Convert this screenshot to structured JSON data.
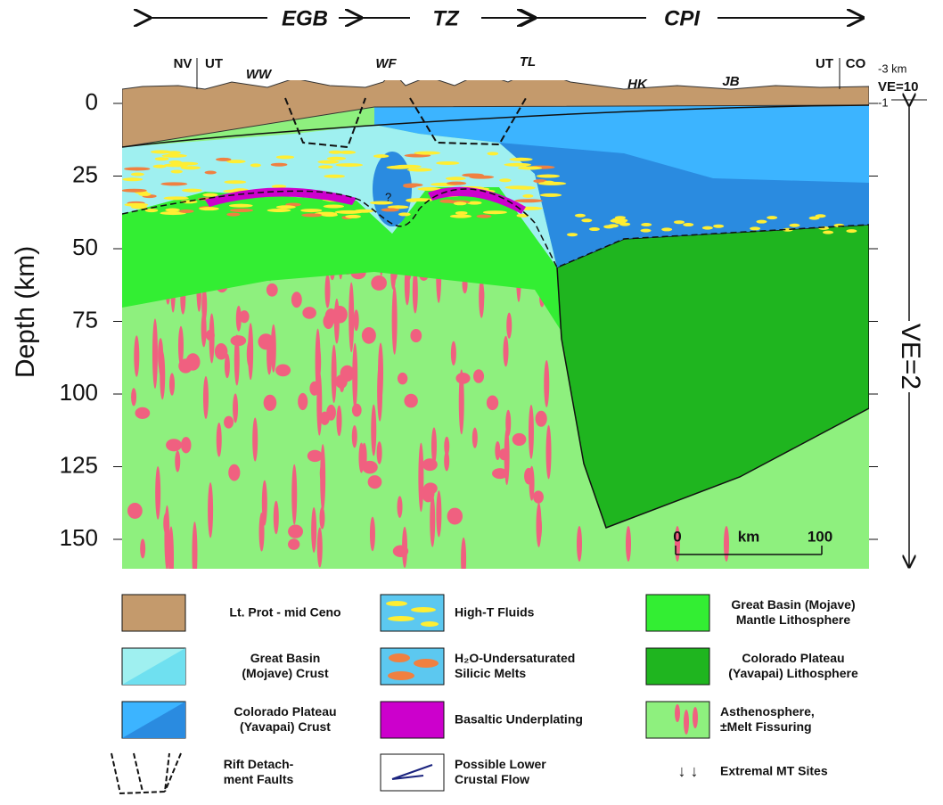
{
  "header": {
    "zones": [
      "EGB",
      "TZ",
      "CPI"
    ]
  },
  "stations": [
    "NV",
    "UT",
    "WW",
    "WF",
    "TL",
    "HK",
    "JB",
    "UT",
    "CO"
  ],
  "right_axis": {
    "top": "-3 km",
    "ve_top": "VE=10",
    "bottom": "-1",
    "ve_main": "VE=2"
  },
  "axis": {
    "title": "Depth  (km)",
    "ticks": [
      0,
      25,
      50,
      75,
      100,
      125,
      150
    ]
  },
  "scale_bar": {
    "start": "0",
    "unit": "km",
    "end": "100"
  },
  "unknown": "?",
  "legend": [
    {
      "lines": [
        "Lt. Prot - mid Ceno"
      ]
    },
    {
      "lines": [
        "Great Basin",
        "(Mojave) Crust"
      ]
    },
    {
      "lines": [
        "Colorado Plateau",
        "(Yavapai) Crust"
      ]
    },
    {
      "lines": [
        "Rift Detach-",
        "ment Faults"
      ]
    },
    {
      "lines": [
        "High-T  Fluids"
      ]
    },
    {
      "lines": [
        "H₂O-Undersaturated",
        "Silicic Melts"
      ]
    },
    {
      "lines": [
        "Basaltic Underplating"
      ]
    },
    {
      "lines": [
        "Possible Lower",
        "Crustal Flow"
      ]
    },
    {
      "lines": [
        "Great Basin (Mojave)",
        "Mantle Lithosphere"
      ]
    },
    {
      "lines": [
        "Colorado Plateau",
        "(Yavapai) Lithosphere"
      ]
    },
    {
      "lines": [
        "Asthenosphere,",
        "±Melt Fissuring"
      ]
    },
    {
      "lines": [
        "Extremal MT Sites"
      ]
    }
  ]
}
